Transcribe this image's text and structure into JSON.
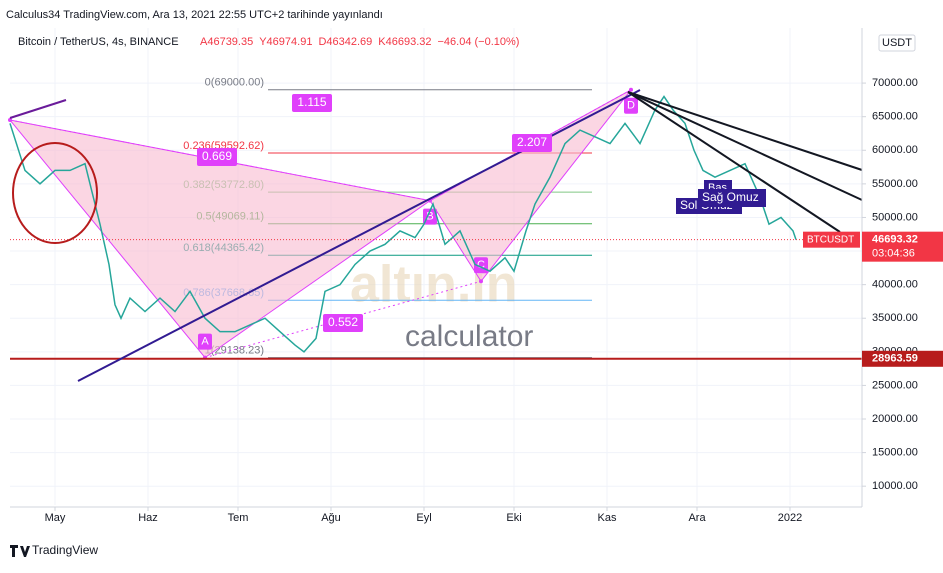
{
  "header": {
    "publisher": "Calculus34 TradingView.com, Ara 13, 2021 22:55 UTC+2 tarihinde yayınlandı",
    "symbol": "Bitcoin / TetherUS, 4s, BINANCE",
    "ohlc": [
      "A46739.35",
      "Y46974.91",
      "D46342.69",
      "K46693.32",
      "−46.04 (−0.10%)"
    ],
    "currency": "USDT"
  },
  "chart_data": {
    "type": "line",
    "x": [
      -15,
      -10,
      -5,
      0,
      5,
      10,
      15,
      18,
      20,
      22,
      25,
      30,
      35,
      40,
      45,
      50,
      55,
      60,
      65,
      70,
      75,
      80,
      83,
      87,
      90,
      95,
      100,
      105,
      110,
      115,
      120,
      123,
      126,
      130,
      135,
      140,
      145,
      150,
      153,
      157,
      160,
      165,
      170,
      175,
      180,
      185,
      190,
      195,
      200,
      203,
      206,
      210,
      213,
      216,
      220,
      225,
      230,
      235,
      238,
      242,
      246,
      247
    ],
    "series": [
      {
        "name": "BTCUSDT",
        "color": "#26a69a",
        "values": [
          64000,
          57000,
          55000,
          57000,
          57000,
          58000,
          49000,
          43000,
          37000,
          35000,
          38000,
          36000,
          38000,
          36000,
          39000,
          35000,
          33000,
          33000,
          34000,
          35000,
          33000,
          31000,
          30000,
          32000,
          39000,
          40000,
          43000,
          45000,
          46000,
          48000,
          47000,
          49000,
          52000,
          46000,
          48000,
          43000,
          42000,
          44000,
          42000,
          48000,
          52000,
          56000,
          61000,
          63000,
          62000,
          61000,
          64000,
          61000,
          66000,
          68000,
          66000,
          64000,
          60000,
          57000,
          56000,
          57000,
          58000,
          53000,
          49000,
          50000,
          48000,
          46693.32
        ]
      }
    ],
    "xlim": [
      -15,
      269
    ],
    "xticks": [
      {
        "value": 0,
        "label": "May"
      },
      {
        "value": 31,
        "label": "Haz"
      },
      {
        "value": 61,
        "label": "Tem"
      },
      {
        "value": 92,
        "label": "Ağu"
      },
      {
        "value": 123,
        "label": "Eyl"
      },
      {
        "value": 153,
        "label": "Eki"
      },
      {
        "value": 184,
        "label": "Kas"
      },
      {
        "value": 214,
        "label": "Ara"
      },
      {
        "value": 245,
        "label": "2022"
      }
    ],
    "ylim": [
      7200,
      78200
    ],
    "yticks": [
      {
        "value": 10000,
        "label": "10000.00"
      },
      {
        "value": 15000,
        "label": "15000.00"
      },
      {
        "value": 20000,
        "label": "20000.00"
      },
      {
        "value": 25000,
        "label": "25000.00"
      },
      {
        "value": 30000,
        "label": "30000.00"
      },
      {
        "value": 35000,
        "label": "35000.00"
      },
      {
        "value": 40000,
        "label": "40000.00"
      },
      {
        "value": 45000,
        "label": "45000.00"
      },
      {
        "value": 50000,
        "label": "50000.00"
      },
      {
        "value": 55000,
        "label": "55000.00"
      },
      {
        "value": 60000,
        "label": "60000.00"
      },
      {
        "value": 65000,
        "label": "65000.00"
      },
      {
        "value": 70000,
        "label": "70000.00"
      }
    ],
    "grid": true,
    "fib_levels": [
      {
        "value": 69000,
        "label": "0(69000.00)",
        "color": "#787b86"
      },
      {
        "value": 59592.62,
        "label": "0.236(59592.62)",
        "color": "#f23645"
      },
      {
        "value": 53772.8,
        "label": "0.382(53772.80)",
        "color": "#81c784"
      },
      {
        "value": 49069.11,
        "label": "0.5(49069.11)",
        "color": "#4caf50"
      },
      {
        "value": 44365.42,
        "label": "0.618(44365.42)",
        "color": "#089981"
      },
      {
        "value": 37668.65,
        "label": "0.786(37668.65)",
        "color": "#64b5f6"
      },
      {
        "value": 29138.23,
        "label": "1(29138.23)",
        "color": "#787b86"
      }
    ],
    "pattern": [
      {
        "x": -15,
        "y": 64500
      },
      {
        "label": "A",
        "x": 50,
        "y": 29138.23
      },
      {
        "label": "B",
        "x": 125,
        "y": 52500
      },
      {
        "label": "C",
        "x": 142,
        "y": 40500
      },
      {
        "label": "D",
        "x": 192,
        "y": 69000
      }
    ],
    "ratios": [
      "1.115",
      "0.669",
      "2.207",
      "0.552"
    ],
    "shoulders": [
      "Baş",
      "Sol Omuz",
      "Sağ Omuz"
    ],
    "support": 28963.59,
    "last": {
      "symbol": "BTCUSDT",
      "price": 46693.32,
      "countdown": "03:04:36"
    }
  },
  "watermark": {
    "brand": "altın.in",
    "text": "calculator"
  },
  "footer": "TradingView"
}
